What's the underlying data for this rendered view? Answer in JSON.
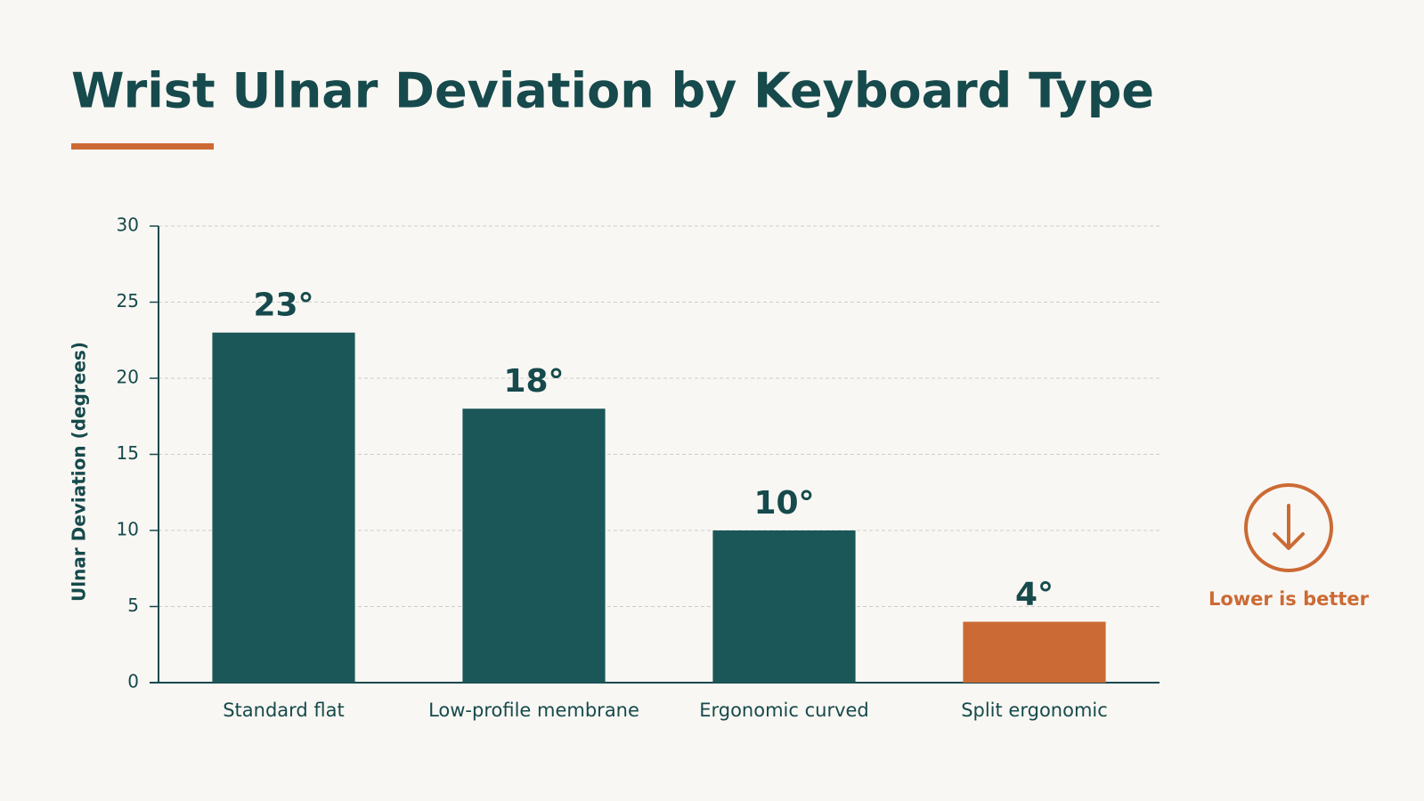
{
  "chart_data": {
    "type": "bar",
    "title": "Wrist Ulnar Deviation by Keyboard Type",
    "y_label": "Ulnar Deviation (degrees)",
    "categories": [
      "Standard flat",
      "Low-profile membrane",
      "Ergonomic curved",
      "Split ergonomic"
    ],
    "values": [
      23,
      18,
      10,
      4
    ],
    "value_labels": [
      "23°",
      "18°",
      "10°",
      "4°"
    ],
    "colors": [
      "#1b5758",
      "#1b5758",
      "#1b5758",
      "#cc6a35"
    ],
    "ylim": [
      0,
      30
    ],
    "yticks": [
      0,
      5,
      10,
      15,
      20,
      25,
      30
    ],
    "grid": true,
    "annotation": "Lower is better"
  }
}
